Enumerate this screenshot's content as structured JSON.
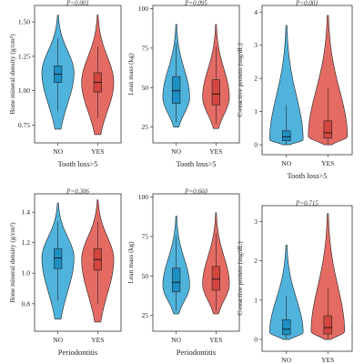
{
  "colors": {
    "no": "#4fb3dc",
    "yes": "#e46b63",
    "no_box": "#1d8fc4",
    "yes_box": "#d2463f"
  },
  "chart_data": [
    {
      "type": "violin",
      "title": "P<0.001",
      "xlabel": "Tooth loss>5",
      "ylabel": "Bone mineral density (g/cm²)",
      "categories": [
        "NO",
        "YES"
      ],
      "yticks": [
        "0.75",
        "1.00",
        "1.25",
        "1.50"
      ],
      "ylim": [
        0.62,
        1.62
      ],
      "groups": [
        {
          "name": "NO",
          "min": 0.72,
          "max": 1.55,
          "q1": 1.06,
          "median": 1.12,
          "q3": 1.18,
          "whisker_low": 0.85,
          "whisker_high": 1.38,
          "mode": 1.13,
          "width": 0.3
        },
        {
          "name": "YES",
          "min": 0.68,
          "max": 1.55,
          "q1": 0.99,
          "median": 1.06,
          "q3": 1.13,
          "whisker_low": 0.8,
          "whisker_high": 1.32,
          "mode": 1.06,
          "width": 0.3
        }
      ]
    },
    {
      "type": "violin",
      "title": "P=0.095",
      "xlabel": "Tooth loss>5",
      "ylabel": "Lean mass (kg)",
      "categories": [
        "NO",
        "YES"
      ],
      "yticks": [
        "25",
        "50",
        "75",
        "100"
      ],
      "ylim": [
        15,
        102
      ],
      "groups": [
        {
          "name": "NO",
          "min": 25,
          "max": 90,
          "q1": 40,
          "median": 48,
          "q3": 57,
          "whisker_low": 28,
          "whisker_high": 78,
          "mode": 44,
          "width": 0.25
        },
        {
          "name": "YES",
          "min": 24,
          "max": 90,
          "q1": 39,
          "median": 46,
          "q3": 55,
          "whisker_low": 27,
          "whisker_high": 76,
          "mode": 44,
          "width": 0.25
        }
      ]
    },
    {
      "type": "violin",
      "title": "P<0.001",
      "xlabel": "Tooth loss>5",
      "ylabel": "C-reactive protein (mg/dL)",
      "categories": [
        "NO",
        "YES"
      ],
      "yticks": [
        "0",
        "1",
        "2",
        "3",
        "4"
      ],
      "ylim": [
        -0.3,
        4.2
      ],
      "groups": [
        {
          "name": "NO",
          "min": 0.0,
          "max": 3.6,
          "q1": 0.12,
          "median": 0.24,
          "q3": 0.42,
          "whisker_low": 0.0,
          "whisker_high": 1.2,
          "mode": 0.15,
          "width": 0.3
        },
        {
          "name": "YES",
          "min": 0.0,
          "max": 3.9,
          "q1": 0.2,
          "median": 0.36,
          "q3": 0.72,
          "whisker_low": 0.0,
          "whisker_high": 1.7,
          "mode": 0.25,
          "width": 0.35
        }
      ]
    },
    {
      "type": "violin",
      "title": "P=0.306",
      "xlabel": "Periodontitis",
      "ylabel": "Bone mineral density (g/cm²)",
      "categories": [
        "NO",
        "YES"
      ],
      "yticks": [
        "0.8",
        "1.0",
        "1.2",
        "1.4"
      ],
      "ylim": [
        0.62,
        1.52
      ],
      "groups": [
        {
          "name": "NO",
          "min": 0.7,
          "max": 1.46,
          "q1": 1.03,
          "median": 1.1,
          "q3": 1.16,
          "whisker_low": 0.82,
          "whisker_high": 1.34,
          "mode": 1.1,
          "width": 0.3
        },
        {
          "name": "YES",
          "min": 0.68,
          "max": 1.48,
          "q1": 1.02,
          "median": 1.09,
          "q3": 1.16,
          "whisker_low": 0.8,
          "whisker_high": 1.34,
          "mode": 1.09,
          "width": 0.3
        }
      ]
    },
    {
      "type": "violin",
      "title": "P=0.660",
      "xlabel": "Periodontitis",
      "ylabel": "Lean mass (kg)",
      "categories": [
        "NO",
        "YES"
      ],
      "yticks": [
        "25",
        "50",
        "75",
        "100"
      ],
      "ylim": [
        15,
        102
      ],
      "groups": [
        {
          "name": "NO",
          "min": 26,
          "max": 88,
          "q1": 40,
          "median": 46,
          "q3": 55,
          "whisker_low": 28,
          "whisker_high": 75,
          "mode": 44,
          "width": 0.25
        },
        {
          "name": "YES",
          "min": 26,
          "max": 90,
          "q1": 41,
          "median": 48,
          "q3": 56,
          "whisker_low": 28,
          "whisker_high": 77,
          "mode": 45,
          "width": 0.25
        }
      ]
    },
    {
      "type": "violin",
      "title": "P=0.715",
      "xlabel": "Periodontitis",
      "ylabel": "C-reactive protein (mg/dL)",
      "categories": [
        "NO",
        "YES"
      ],
      "yticks": [
        "0",
        "1",
        "2",
        "3"
      ],
      "ylim": [
        -0.3,
        3.4
      ],
      "groups": [
        {
          "name": "NO",
          "min": 0.0,
          "max": 2.4,
          "q1": 0.12,
          "median": 0.26,
          "q3": 0.5,
          "whisker_low": 0.0,
          "whisker_high": 1.1,
          "mode": 0.18,
          "width": 0.3
        },
        {
          "name": "YES",
          "min": 0.0,
          "max": 3.2,
          "q1": 0.14,
          "median": 0.3,
          "q3": 0.6,
          "whisker_low": 0.0,
          "whisker_high": 1.3,
          "mode": 0.2,
          "width": 0.3
        }
      ]
    }
  ]
}
